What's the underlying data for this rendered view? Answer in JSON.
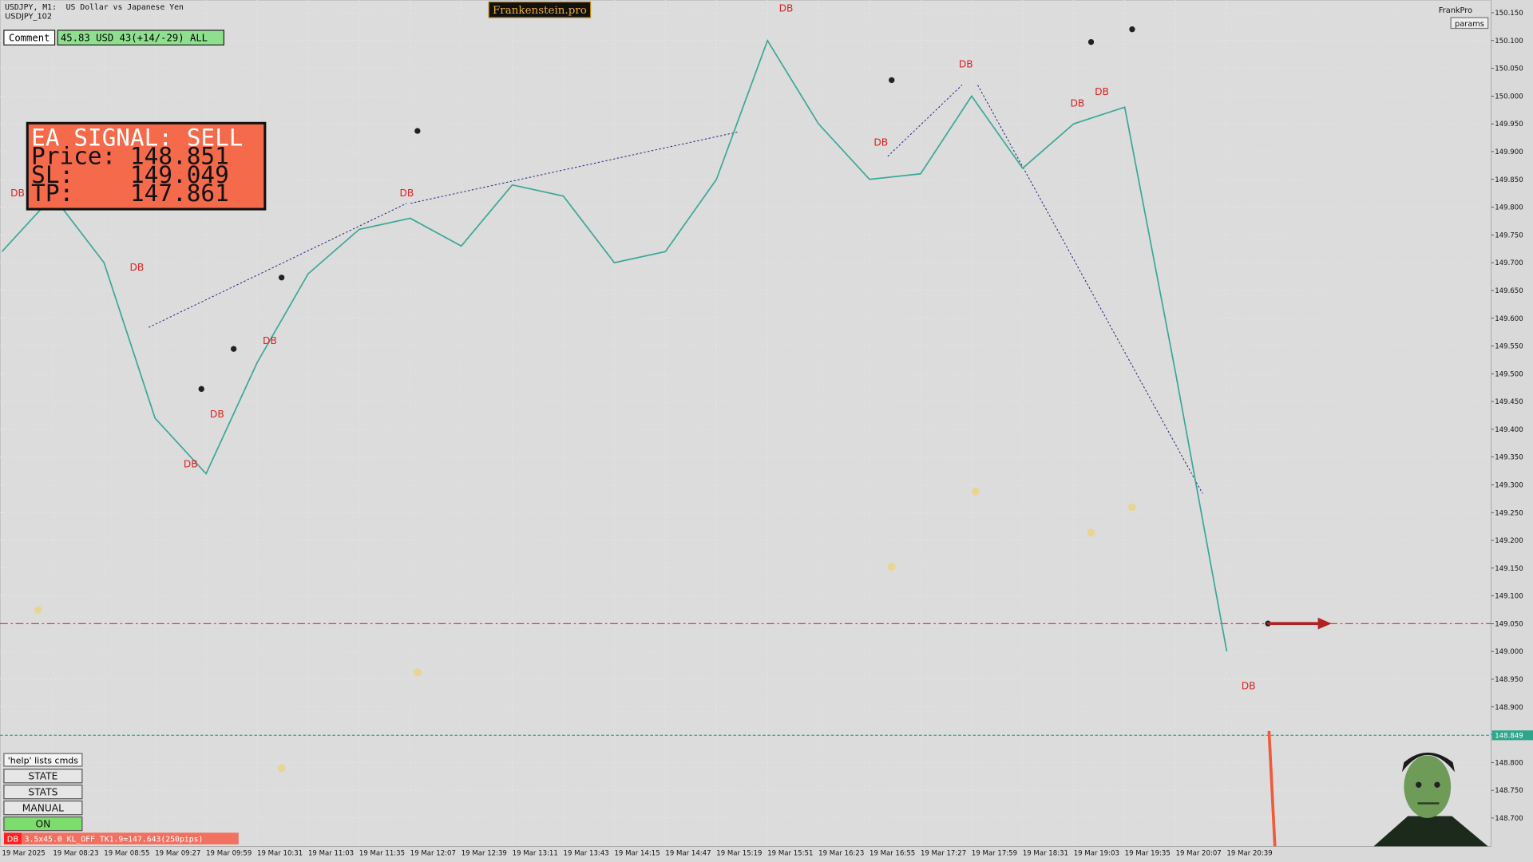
{
  "header": {
    "symbol": "USDJPY, M1:  US Dollar vs Japanese Yen",
    "account": "USDJPY_102",
    "brand": "Frankenstein.pro",
    "user": "FrankPro",
    "params": "params"
  },
  "comment": {
    "label": "Comment",
    "text": "45.83 USD 43(+14/-29) ALL"
  },
  "signal": {
    "title": "EA SIGNAL: SELL",
    "lines": [
      "Price: 148.851",
      "SL:    149.049",
      "TP:    147.861"
    ]
  },
  "panel": {
    "help": "'help' lists cmds",
    "buttons": [
      "STATE",
      "STATS",
      "MANUAL",
      "ON"
    ],
    "status_tag": "DB",
    "status": "3.5x45.0 KL_OFF TK1.9=147.643(250pips)"
  },
  "chart_data": {
    "type": "line",
    "categories": [
      "19 Mar 2025",
      "19 Mar 08:23",
      "19 Mar 08:55",
      "19 Mar 09:27",
      "19 Mar 09:59",
      "19 Mar 10:31",
      "19 Mar 11:03",
      "19 Mar 11:35",
      "19 Mar 12:07",
      "19 Mar 12:39",
      "19 Mar 13:11",
      "19 Mar 13:43",
      "19 Mar 14:15",
      "19 Mar 14:47",
      "19 Mar 15:19",
      "19 Mar 15:51",
      "19 Mar 16:23",
      "19 Mar 16:55",
      "19 Mar 17:27",
      "19 Mar 17:59",
      "19 Mar 18:31",
      "19 Mar 19:03",
      "19 Mar 19:35",
      "19 Mar 20:07",
      "19 Mar 20:39"
    ],
    "values": [
      149.72,
      149.82,
      149.7,
      149.42,
      149.32,
      149.52,
      149.68,
      149.76,
      149.78,
      149.73,
      149.84,
      149.82,
      149.7,
      149.72,
      149.85,
      150.1,
      149.95,
      149.85,
      149.86,
      150.0,
      149.87,
      149.95,
      149.98,
      149.5,
      149.0
    ],
    "color": "#3aa898",
    "ylim": [
      148.649,
      150.173
    ],
    "yticks": [
      {
        "value": 150.15,
        "label": "150.150"
      },
      {
        "value": 150.1,
        "label": "150.100"
      },
      {
        "value": 150.05,
        "label": "150.050"
      },
      {
        "value": 150.0,
        "label": "150.000"
      },
      {
        "value": 149.95,
        "label": "149.950"
      },
      {
        "value": 149.9,
        "label": "149.900"
      },
      {
        "value": 149.85,
        "label": "149.850"
      },
      {
        "value": 149.8,
        "label": "149.800"
      },
      {
        "value": 149.75,
        "label": "149.750"
      },
      {
        "value": 149.7,
        "label": "149.700"
      },
      {
        "value": 149.65,
        "label": "149.650"
      },
      {
        "value": 149.6,
        "label": "149.600"
      },
      {
        "value": 149.55,
        "label": "149.550"
      },
      {
        "value": 149.5,
        "label": "149.500"
      },
      {
        "value": 149.45,
        "label": "149.450"
      },
      {
        "value": 149.4,
        "label": "149.400"
      },
      {
        "value": 149.35,
        "label": "149.350"
      },
      {
        "value": 149.3,
        "label": "149.300"
      },
      {
        "value": 149.25,
        "label": "149.250"
      },
      {
        "value": 149.2,
        "label": "149.200"
      },
      {
        "value": 149.15,
        "label": "149.150"
      },
      {
        "value": 149.1,
        "label": "149.100"
      },
      {
        "value": 149.05,
        "label": "149.050"
      },
      {
        "value": 149.0,
        "label": "149.000"
      },
      {
        "value": 148.95,
        "label": "148.950"
      },
      {
        "value": 148.9,
        "label": "148.900"
      },
      {
        "value": 148.85,
        "label": "148.850"
      },
      {
        "value": 148.8,
        "label": "148.800"
      },
      {
        "value": 148.75,
        "label": "148.750"
      },
      {
        "value": 148.7,
        "label": "148.700"
      }
    ],
    "grid": true,
    "level_line": {
      "value": 149.05,
      "color": "#e03a3a"
    },
    "price_line": {
      "value": 148.849,
      "color": "#2fa58a"
    },
    "db_markers": [
      "DB",
      "DB",
      "DB",
      "DB",
      "DB",
      "DB",
      "DB",
      "DB",
      "DB",
      "DB",
      "DB",
      "DB"
    ]
  }
}
